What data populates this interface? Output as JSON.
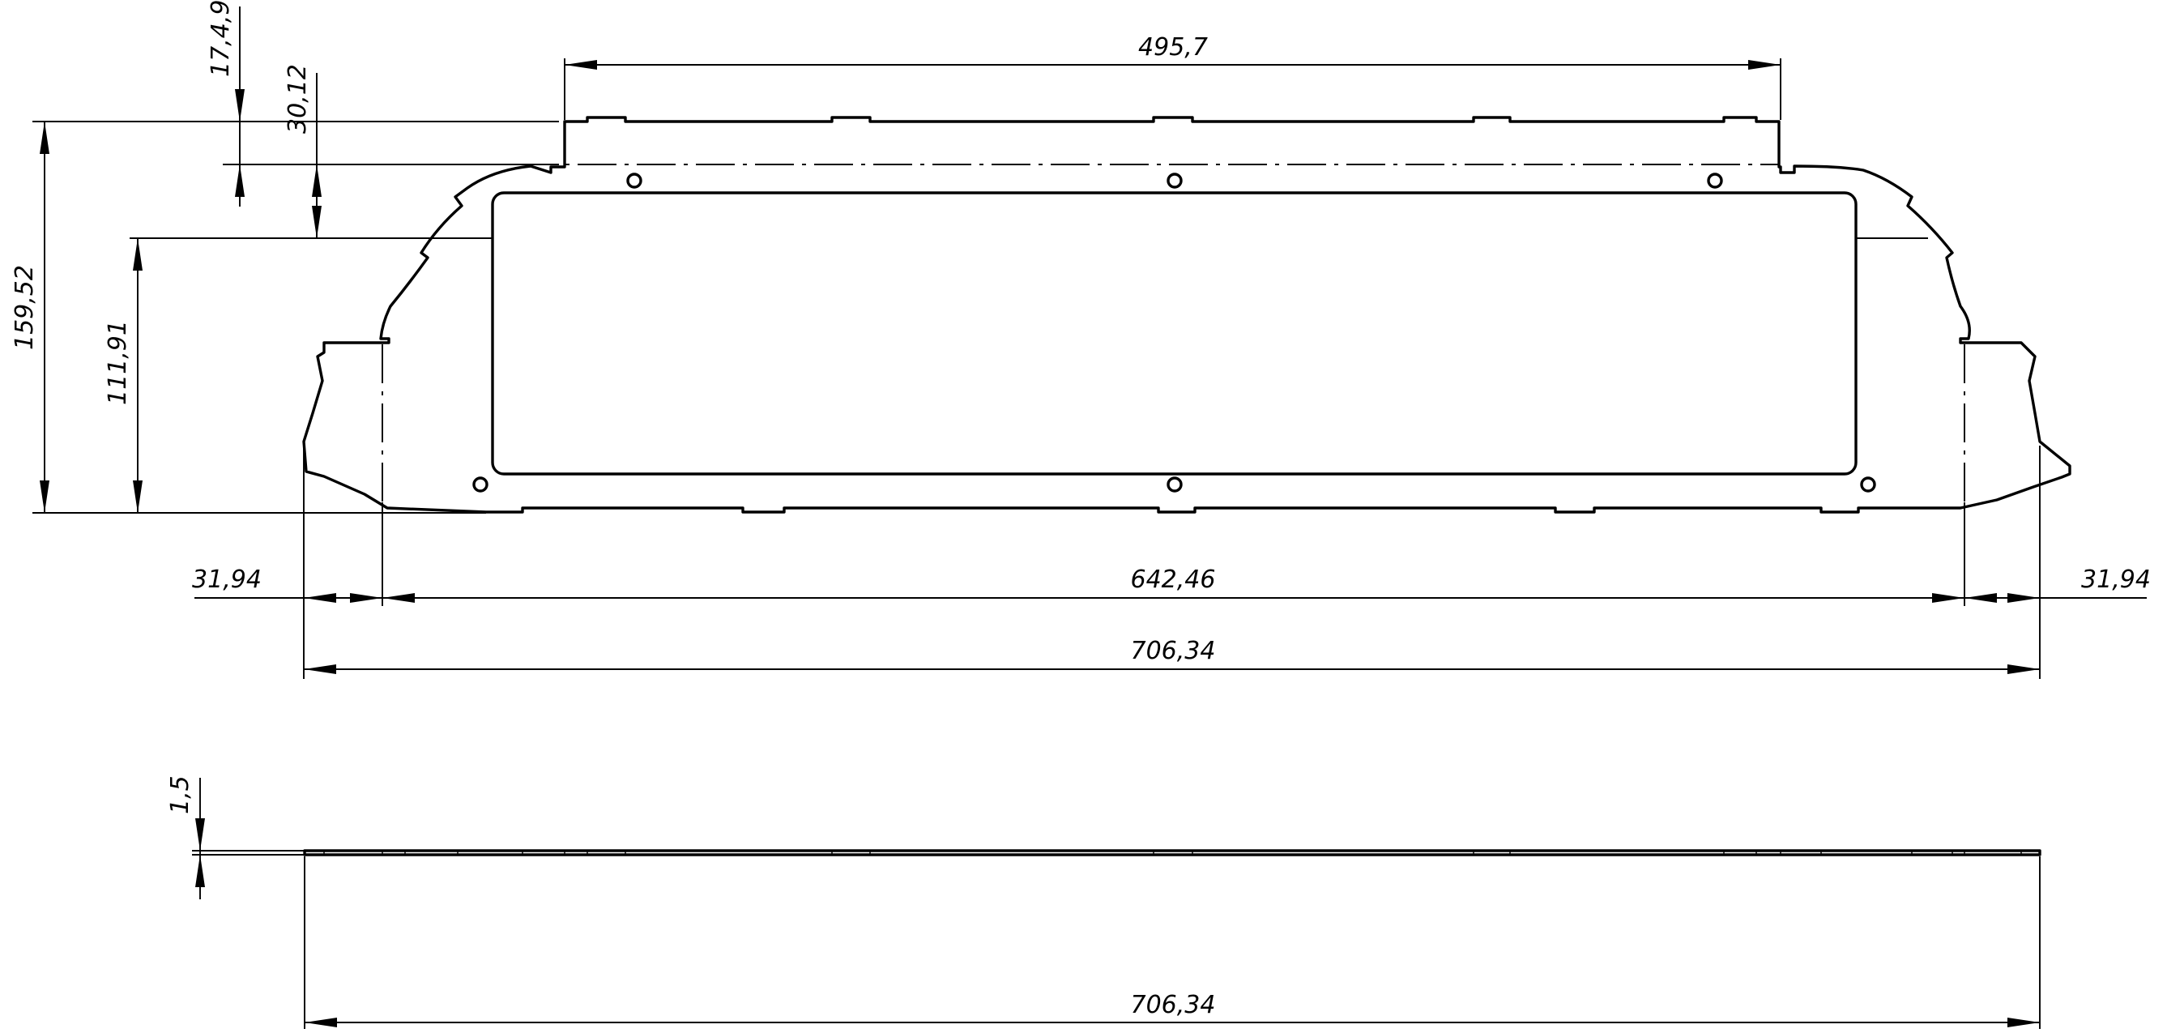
{
  "dimensions": {
    "top_tab_width": "495,7",
    "tab_offset": "17,4,9",
    "window_offset": "30,12",
    "total_height": "159,52",
    "window_height": "111,91",
    "left_margin": "31,94",
    "inner_width": "642,46",
    "right_margin": "31,94",
    "total_width": "706,34",
    "thickness": "1,5",
    "side_total_width": "706,34"
  }
}
